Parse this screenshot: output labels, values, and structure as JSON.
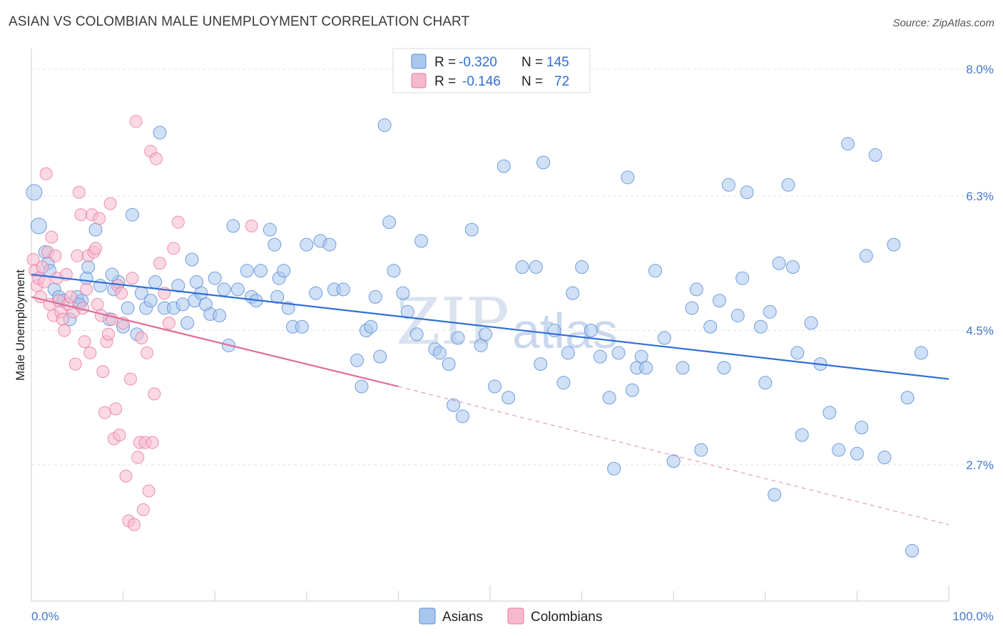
{
  "title": "ASIAN VS COLOMBIAN MALE UNEMPLOYMENT CORRELATION CHART",
  "source": "Source: ZipAtlas.com",
  "watermark": {
    "zip": "ZIP",
    "atlas": "atlas"
  },
  "colors": {
    "asian": "#5b8fd6",
    "asian_fill": "#a9c6ee",
    "colombian": "#e9769e",
    "colombian_fill": "#f5b9cd",
    "trend_asian": "#2f6fd6",
    "trend_colombian": "#e06d96",
    "tick": "#4477cc"
  },
  "legend": {
    "rows": [
      {
        "r_label": "R =",
        "r_value": "-0.320",
        "n_label": "N =",
        "n_value": "145"
      },
      {
        "r_label": "R =",
        "r_value": "-0.146",
        "n_label": "N =",
        "n_value": "72"
      }
    ]
  },
  "bottom_legend": [
    "Asians",
    "Colombians"
  ],
  "chart_data": {
    "type": "scatter",
    "ylabel": "Male Unemployment",
    "xlim": [
      0,
      100
    ],
    "ylim": [
      1.3,
      8.3
    ],
    "x_tick_labels": {
      "left": "0.0%",
      "right": "100.0%"
    },
    "y_ticks": [
      {
        "value": 8.0,
        "label": "8.0%"
      },
      {
        "value": 6.3,
        "label": "6.3%"
      },
      {
        "value": 4.5,
        "label": "4.5%"
      },
      {
        "value": 2.7,
        "label": "2.7%"
      }
    ],
    "series": [
      {
        "name": "Asians",
        "trend": {
          "x1": 0,
          "y1": 5.25,
          "x2": 100,
          "y2": 3.85
        },
        "points": [
          [
            0.3,
            6.35
          ],
          [
            0.8,
            5.9
          ],
          [
            1.5,
            5.55
          ],
          [
            1.8,
            5.4
          ],
          [
            2.0,
            5.3
          ],
          [
            2.5,
            5.05
          ],
          [
            3.0,
            4.95
          ],
          [
            3.5,
            4.9
          ],
          [
            4.2,
            4.65
          ],
          [
            5.0,
            4.95
          ],
          [
            5.5,
            4.9
          ],
          [
            6.0,
            5.2
          ],
          [
            6.2,
            5.35
          ],
          [
            7.0,
            5.85
          ],
          [
            7.5,
            5.1
          ],
          [
            8.5,
            4.65
          ],
          [
            9.0,
            5.05
          ],
          [
            9.5,
            5.15
          ],
          [
            10.0,
            4.55
          ],
          [
            10.5,
            4.8
          ],
          [
            11.0,
            6.05
          ],
          [
            11.5,
            4.45
          ],
          [
            12.0,
            5.0
          ],
          [
            12.5,
            4.8
          ],
          [
            13.5,
            5.15
          ],
          [
            14.0,
            7.15
          ],
          [
            14.5,
            4.8
          ],
          [
            15.5,
            4.8
          ],
          [
            16.0,
            5.1
          ],
          [
            16.5,
            4.85
          ],
          [
            17.0,
            4.6
          ],
          [
            17.5,
            5.45
          ],
          [
            17.8,
            4.9
          ],
          [
            18.5,
            5.0
          ],
          [
            19.0,
            4.85
          ],
          [
            19.5,
            4.72
          ],
          [
            20.0,
            5.2
          ],
          [
            20.5,
            4.7
          ],
          [
            21.0,
            5.05
          ],
          [
            21.5,
            4.3
          ],
          [
            22.0,
            5.9
          ],
          [
            22.5,
            5.05
          ],
          [
            23.5,
            5.3
          ],
          [
            24.0,
            4.95
          ],
          [
            24.5,
            4.9
          ],
          [
            25.0,
            5.3
          ],
          [
            26.0,
            5.85
          ],
          [
            26.5,
            5.65
          ],
          [
            27.0,
            5.2
          ],
          [
            27.5,
            5.3
          ],
          [
            28.0,
            4.8
          ],
          [
            28.5,
            4.55
          ],
          [
            29.5,
            4.55
          ],
          [
            30.0,
            5.65
          ],
          [
            31.0,
            5.0
          ],
          [
            31.5,
            5.7
          ],
          [
            32.5,
            5.65
          ],
          [
            33.0,
            5.05
          ],
          [
            34.0,
            5.05
          ],
          [
            35.5,
            4.1
          ],
          [
            36.0,
            3.75
          ],
          [
            36.5,
            4.5
          ],
          [
            37.0,
            4.55
          ],
          [
            37.5,
            4.95
          ],
          [
            38.0,
            4.15
          ],
          [
            38.5,
            7.25
          ],
          [
            39.0,
            5.95
          ],
          [
            39.5,
            5.3
          ],
          [
            40.5,
            5.0
          ],
          [
            41.0,
            4.75
          ],
          [
            42.0,
            4.45
          ],
          [
            42.5,
            5.7
          ],
          [
            44.0,
            4.25
          ],
          [
            44.5,
            4.2
          ],
          [
            45.5,
            4.05
          ],
          [
            46.0,
            3.5
          ],
          [
            46.5,
            4.4
          ],
          [
            47.0,
            3.35
          ],
          [
            48.0,
            5.85
          ],
          [
            49.0,
            4.3
          ],
          [
            49.5,
            4.45
          ],
          [
            50.5,
            3.75
          ],
          [
            51.5,
            6.7
          ],
          [
            52.0,
            3.6
          ],
          [
            53.5,
            5.35
          ],
          [
            55.0,
            5.35
          ],
          [
            55.5,
            4.05
          ],
          [
            55.8,
            6.75
          ],
          [
            57.0,
            4.5
          ],
          [
            58.0,
            3.8
          ],
          [
            58.5,
            4.2
          ],
          [
            59.0,
            5.0
          ],
          [
            60.0,
            5.35
          ],
          [
            61.0,
            4.5
          ],
          [
            62.0,
            4.15
          ],
          [
            63.0,
            3.6
          ],
          [
            63.5,
            2.65
          ],
          [
            64.0,
            4.2
          ],
          [
            65.0,
            6.55
          ],
          [
            65.5,
            3.7
          ],
          [
            66.0,
            4.0
          ],
          [
            66.5,
            4.15
          ],
          [
            67.0,
            4.0
          ],
          [
            68.0,
            5.3
          ],
          [
            69.0,
            4.4
          ],
          [
            70.0,
            2.75
          ],
          [
            71.0,
            4.0
          ],
          [
            72.0,
            4.8
          ],
          [
            72.5,
            5.05
          ],
          [
            73.0,
            2.9
          ],
          [
            74.0,
            4.55
          ],
          [
            75.0,
            4.9
          ],
          [
            75.5,
            4.0
          ],
          [
            76.0,
            6.45
          ],
          [
            77.0,
            4.7
          ],
          [
            77.5,
            5.2
          ],
          [
            78.0,
            6.35
          ],
          [
            79.5,
            4.55
          ],
          [
            80.0,
            3.8
          ],
          [
            80.5,
            4.75
          ],
          [
            81.0,
            2.3
          ],
          [
            81.5,
            5.4
          ],
          [
            82.5,
            6.45
          ],
          [
            83.0,
            5.35
          ],
          [
            83.5,
            4.2
          ],
          [
            84.0,
            3.1
          ],
          [
            85.0,
            4.6
          ],
          [
            86.0,
            4.05
          ],
          [
            87.0,
            3.4
          ],
          [
            88.0,
            2.9
          ],
          [
            89.0,
            7.0
          ],
          [
            90.0,
            2.85
          ],
          [
            90.5,
            3.2
          ],
          [
            91.0,
            5.5
          ],
          [
            92.0,
            6.85
          ],
          [
            93.0,
            2.8
          ],
          [
            94.0,
            5.65
          ],
          [
            95.5,
            3.6
          ],
          [
            96.0,
            1.55
          ],
          [
            97.0,
            4.2
          ],
          [
            5.2,
            4.85
          ],
          [
            8.8,
            5.25
          ],
          [
            13.0,
            4.9
          ],
          [
            18.0,
            5.15
          ],
          [
            26.8,
            4.95
          ]
        ]
      },
      {
        "name": "Colombians",
        "trend": {
          "x1": 0,
          "y1": 4.95,
          "x2": 40,
          "y2": 3.75
        },
        "trend_dashed": {
          "x1": 40,
          "y1": 3.75,
          "x2": 100,
          "y2": 1.9
        },
        "points": [
          [
            0.2,
            5.45
          ],
          [
            0.4,
            5.3
          ],
          [
            0.6,
            5.1
          ],
          [
            0.8,
            5.2
          ],
          [
            1.0,
            4.95
          ],
          [
            1.2,
            5.35
          ],
          [
            1.4,
            5.15
          ],
          [
            1.6,
            6.6
          ],
          [
            1.8,
            5.55
          ],
          [
            2.0,
            4.85
          ],
          [
            2.2,
            5.75
          ],
          [
            2.4,
            4.7
          ],
          [
            2.6,
            5.5
          ],
          [
            2.8,
            5.2
          ],
          [
            3.0,
            4.9
          ],
          [
            3.2,
            4.75
          ],
          [
            3.4,
            4.65
          ],
          [
            3.6,
            4.5
          ],
          [
            3.8,
            5.25
          ],
          [
            4.0,
            4.85
          ],
          [
            4.3,
            4.95
          ],
          [
            4.6,
            4.75
          ],
          [
            4.8,
            4.05
          ],
          [
            5.0,
            5.5
          ],
          [
            5.2,
            6.35
          ],
          [
            5.4,
            6.05
          ],
          [
            5.6,
            4.8
          ],
          [
            5.8,
            4.35
          ],
          [
            6.0,
            5.05
          ],
          [
            6.2,
            5.5
          ],
          [
            6.4,
            4.2
          ],
          [
            6.6,
            6.05
          ],
          [
            6.8,
            5.55
          ],
          [
            7.0,
            5.6
          ],
          [
            7.2,
            4.85
          ],
          [
            7.4,
            6.0
          ],
          [
            7.6,
            4.7
          ],
          [
            7.8,
            3.95
          ],
          [
            8.0,
            3.4
          ],
          [
            8.2,
            4.35
          ],
          [
            8.4,
            4.45
          ],
          [
            8.6,
            6.2
          ],
          [
            8.8,
            4.65
          ],
          [
            9.0,
            3.05
          ],
          [
            9.2,
            3.45
          ],
          [
            9.4,
            5.1
          ],
          [
            9.6,
            3.1
          ],
          [
            9.8,
            5.0
          ],
          [
            10.0,
            4.6
          ],
          [
            10.3,
            2.55
          ],
          [
            10.6,
            1.95
          ],
          [
            10.8,
            3.85
          ],
          [
            11.0,
            5.2
          ],
          [
            11.2,
            1.9
          ],
          [
            11.4,
            7.3
          ],
          [
            11.6,
            2.8
          ],
          [
            11.8,
            3.0
          ],
          [
            12.0,
            4.4
          ],
          [
            12.2,
            2.1
          ],
          [
            12.4,
            3.0
          ],
          [
            12.6,
            4.2
          ],
          [
            12.8,
            2.35
          ],
          [
            13.0,
            6.9
          ],
          [
            13.2,
            3.0
          ],
          [
            13.4,
            3.65
          ],
          [
            13.6,
            6.8
          ],
          [
            14.0,
            5.4
          ],
          [
            14.5,
            5.0
          ],
          [
            15.0,
            4.6
          ],
          [
            15.5,
            5.6
          ],
          [
            16.0,
            5.95
          ],
          [
            24.0,
            5.9
          ]
        ]
      }
    ]
  }
}
